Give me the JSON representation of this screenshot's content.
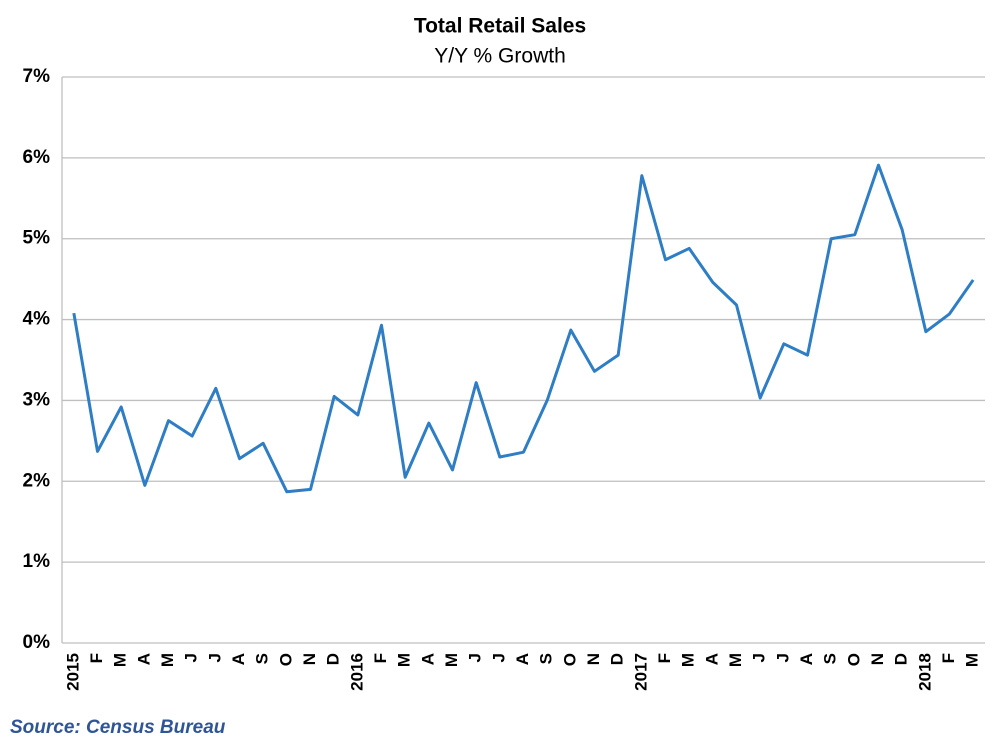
{
  "chart_data": {
    "type": "line",
    "title": "Total Retail Sales",
    "subtitle": "Y/Y % Growth",
    "categories": [
      "2015",
      "F",
      "M",
      "A",
      "M",
      "J",
      "J",
      "A",
      "S",
      "O",
      "N",
      "D",
      "2016",
      "F",
      "M",
      "A",
      "M",
      "J",
      "J",
      "A",
      "S",
      "O",
      "N",
      "D",
      "2017",
      "F",
      "M",
      "A",
      "M",
      "J",
      "J",
      "A",
      "S",
      "O",
      "N",
      "D",
      "2018",
      "F",
      "M"
    ],
    "series": [
      {
        "name": "Total Retail Sales Y/Y % Growth",
        "color": "#2e7dc5",
        "values": [
          4.08,
          2.37,
          2.92,
          1.95,
          2.75,
          2.56,
          3.15,
          2.28,
          2.47,
          1.87,
          1.9,
          3.05,
          2.82,
          3.93,
          2.05,
          2.72,
          2.14,
          3.22,
          2.3,
          2.36,
          3.0,
          3.87,
          3.36,
          3.56,
          5.78,
          4.74,
          4.88,
          4.46,
          4.18,
          3.03,
          3.7,
          3.56,
          5.0,
          5.05,
          5.91,
          5.11,
          3.85,
          4.07,
          4.49
        ]
      }
    ],
    "ylim": [
      0,
      7
    ],
    "yticks": [
      {
        "value": 0,
        "label": "0%"
      },
      {
        "value": 1,
        "label": "1%"
      },
      {
        "value": 2,
        "label": "2%"
      },
      {
        "value": 3,
        "label": "3%"
      },
      {
        "value": 4,
        "label": "4%"
      },
      {
        "value": 5,
        "label": "5%"
      },
      {
        "value": 6,
        "label": "6%"
      },
      {
        "value": 7,
        "label": "7%"
      }
    ],
    "grid": true,
    "source": "Source: Census Bureau"
  }
}
